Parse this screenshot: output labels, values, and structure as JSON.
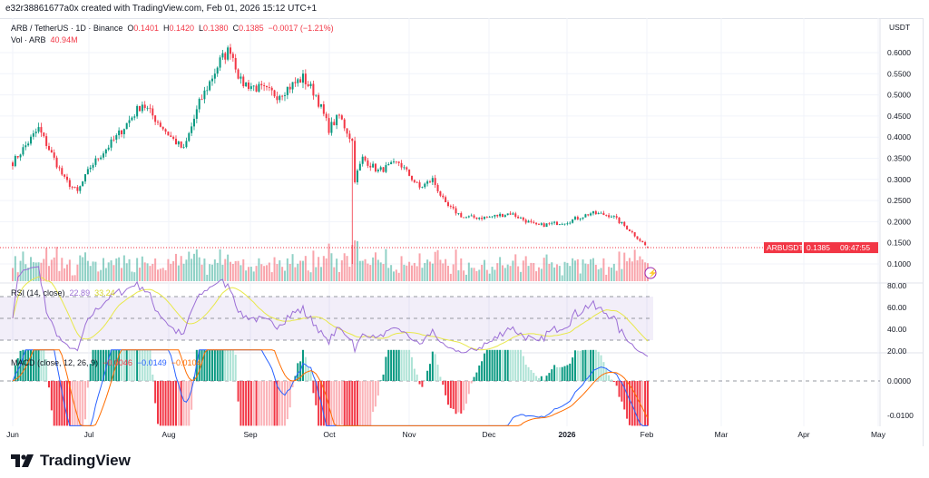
{
  "credit": "e32r38861677a0x created with TradingView.com, Feb 01, 2026 15:12 UTC+1",
  "legend": {
    "symbol": "ARB / TetherUS · 1D · Binance",
    "o_label": "O",
    "o": "0.1401",
    "h_label": "H",
    "h": "0.1420",
    "l_label": "L",
    "l": "0.1380",
    "c_label": "C",
    "c": "0.1385",
    "change": "−0.0017 (−1.21%)",
    "vol_label": "Vol · ARB",
    "vol": "40.94M"
  },
  "currency": "USDT",
  "price_tag": {
    "symbol": "ARBUSDT",
    "price": "0.1385",
    "countdown": "09:47:55"
  },
  "rsi": {
    "label": "RSI (14, close)",
    "value": "22.89",
    "ma": "33.24"
  },
  "macd": {
    "label": "MACD (close, 12, 26, 9)",
    "hist": "−0.0046",
    "macd": "−0.0149",
    "signal": "−0.0104"
  },
  "brand": "TradingView",
  "colors": {
    "up": "#089981",
    "down": "#f23645",
    "rsi": "#9c6fd6",
    "rsi_ma": "#e8e84a",
    "macd": "#2962ff",
    "signal": "#ff6d00"
  },
  "chart_data": {
    "type": "candlestick",
    "price_ticks": [
      "0.6000",
      "0.5500",
      "0.5000",
      "0.4500",
      "0.4000",
      "0.3500",
      "0.3000",
      "0.2500",
      "0.2000",
      "0.1500",
      "0.1000"
    ],
    "rsi_ticks": [
      "80.00",
      "60.00",
      "40.00",
      "20.00"
    ],
    "macd_ticks": [
      "0.0000",
      "-0.0100"
    ],
    "time_ticks": [
      "Jun",
      "Jul",
      "Aug",
      "Sep",
      "Oct",
      "Nov",
      "Dec",
      "2026",
      "Feb",
      "Mar",
      "Apr",
      "May"
    ],
    "close_path_day_value": [
      [
        0,
        0.34
      ],
      [
        10,
        0.42
      ],
      [
        20,
        0.3
      ],
      [
        25,
        0.27
      ],
      [
        30,
        0.33
      ],
      [
        40,
        0.4
      ],
      [
        50,
        0.48
      ],
      [
        61,
        0.4
      ],
      [
        66,
        0.37
      ],
      [
        72,
        0.48
      ],
      [
        80,
        0.58
      ],
      [
        84,
        0.61
      ],
      [
        88,
        0.53
      ],
      [
        102,
        0.5
      ],
      [
        112,
        0.54
      ],
      [
        117,
        0.5
      ],
      [
        122,
        0.42
      ],
      [
        126,
        0.45
      ],
      [
        131,
        0.39
      ],
      [
        132,
        0.3
      ],
      [
        135,
        0.35
      ],
      [
        141,
        0.32
      ],
      [
        149,
        0.34
      ],
      [
        157,
        0.28
      ],
      [
        162,
        0.3
      ],
      [
        167,
        0.24
      ],
      [
        174,
        0.21
      ],
      [
        183,
        0.21
      ],
      [
        192,
        0.22
      ],
      [
        202,
        0.19
      ],
      [
        214,
        0.2
      ],
      [
        223,
        0.22
      ],
      [
        231,
        0.215
      ],
      [
        238,
        0.18
      ],
      [
        245,
        0.1385
      ]
    ]
  }
}
